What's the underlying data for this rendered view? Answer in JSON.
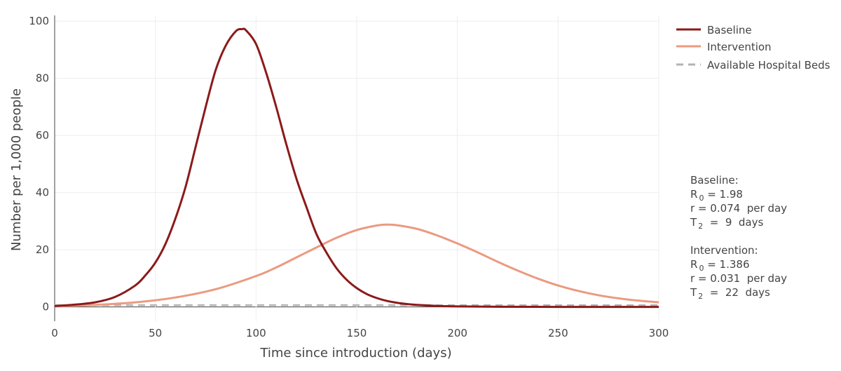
{
  "chart_data": {
    "type": "line",
    "title": "",
    "xlabel": "Time since introduction (days)",
    "ylabel": "Number per 1,000 people",
    "xlim": [
      0,
      300
    ],
    "ylim": [
      -5,
      102
    ],
    "xticks": [
      "0",
      "50",
      "100",
      "150",
      "200",
      "250",
      "300"
    ],
    "yticks": [
      "0",
      "20",
      "40",
      "60",
      "80",
      "100"
    ],
    "grid": true,
    "legend_position": "top-right",
    "series": [
      {
        "name": "Baseline",
        "color": "#8b1a1a",
        "style": "solid",
        "points": [
          [
            0,
            0.3
          ],
          [
            10,
            0.8
          ],
          [
            20,
            1.6
          ],
          [
            30,
            3.5
          ],
          [
            40,
            7.5
          ],
          [
            45,
            11
          ],
          [
            50,
            15.5
          ],
          [
            55,
            22
          ],
          [
            60,
            31
          ],
          [
            65,
            42
          ],
          [
            70,
            56
          ],
          [
            75,
            70
          ],
          [
            80,
            83
          ],
          [
            85,
            91.5
          ],
          [
            90,
            96.5
          ],
          [
            93,
            97.2
          ],
          [
            95,
            96.8
          ],
          [
            100,
            92
          ],
          [
            105,
            82
          ],
          [
            110,
            70
          ],
          [
            115,
            57
          ],
          [
            120,
            45
          ],
          [
            125,
            35
          ],
          [
            130,
            25.5
          ],
          [
            135,
            19
          ],
          [
            140,
            13.5
          ],
          [
            145,
            9.5
          ],
          [
            150,
            6.6
          ],
          [
            155,
            4.5
          ],
          [
            160,
            3.1
          ],
          [
            165,
            2.1
          ],
          [
            170,
            1.45
          ],
          [
            175,
            1.0
          ],
          [
            180,
            0.7
          ],
          [
            190,
            0.35
          ],
          [
            200,
            0.18
          ],
          [
            220,
            0.05
          ],
          [
            250,
            0.01
          ],
          [
            300,
            0
          ]
        ]
      },
      {
        "name": "Intervention",
        "color": "#eb9a80",
        "style": "solid",
        "points": [
          [
            0,
            0.2
          ],
          [
            20,
            0.7
          ],
          [
            40,
            1.6
          ],
          [
            60,
            3.3
          ],
          [
            80,
            6.2
          ],
          [
            100,
            10.8
          ],
          [
            110,
            13.8
          ],
          [
            120,
            17.3
          ],
          [
            130,
            20.8
          ],
          [
            140,
            24.2
          ],
          [
            150,
            26.9
          ],
          [
            160,
            28.5
          ],
          [
            165,
            28.8
          ],
          [
            170,
            28.6
          ],
          [
            180,
            27.3
          ],
          [
            190,
            25
          ],
          [
            200,
            22.2
          ],
          [
            210,
            19.1
          ],
          [
            220,
            15.8
          ],
          [
            230,
            12.7
          ],
          [
            240,
            9.9
          ],
          [
            250,
            7.5
          ],
          [
            260,
            5.6
          ],
          [
            270,
            4.1
          ],
          [
            280,
            3.0
          ],
          [
            290,
            2.2
          ],
          [
            300,
            1.6
          ]
        ]
      },
      {
        "name": "Available Hospital Beds",
        "color": "#b3b3b3",
        "style": "dashed",
        "points": [
          [
            0,
            0.6
          ],
          [
            300,
            0.6
          ]
        ]
      }
    ],
    "annotation": {
      "baseline_title": "Baseline:",
      "baseline_R0": "1.98",
      "baseline_r": "0.074",
      "baseline_T2": "9",
      "intervention_title": "Intervention:",
      "intervention_R0": "1.386",
      "intervention_r": "0.031",
      "intervention_T2": "22",
      "r_unit": "per day",
      "T2_unit": "days"
    }
  }
}
